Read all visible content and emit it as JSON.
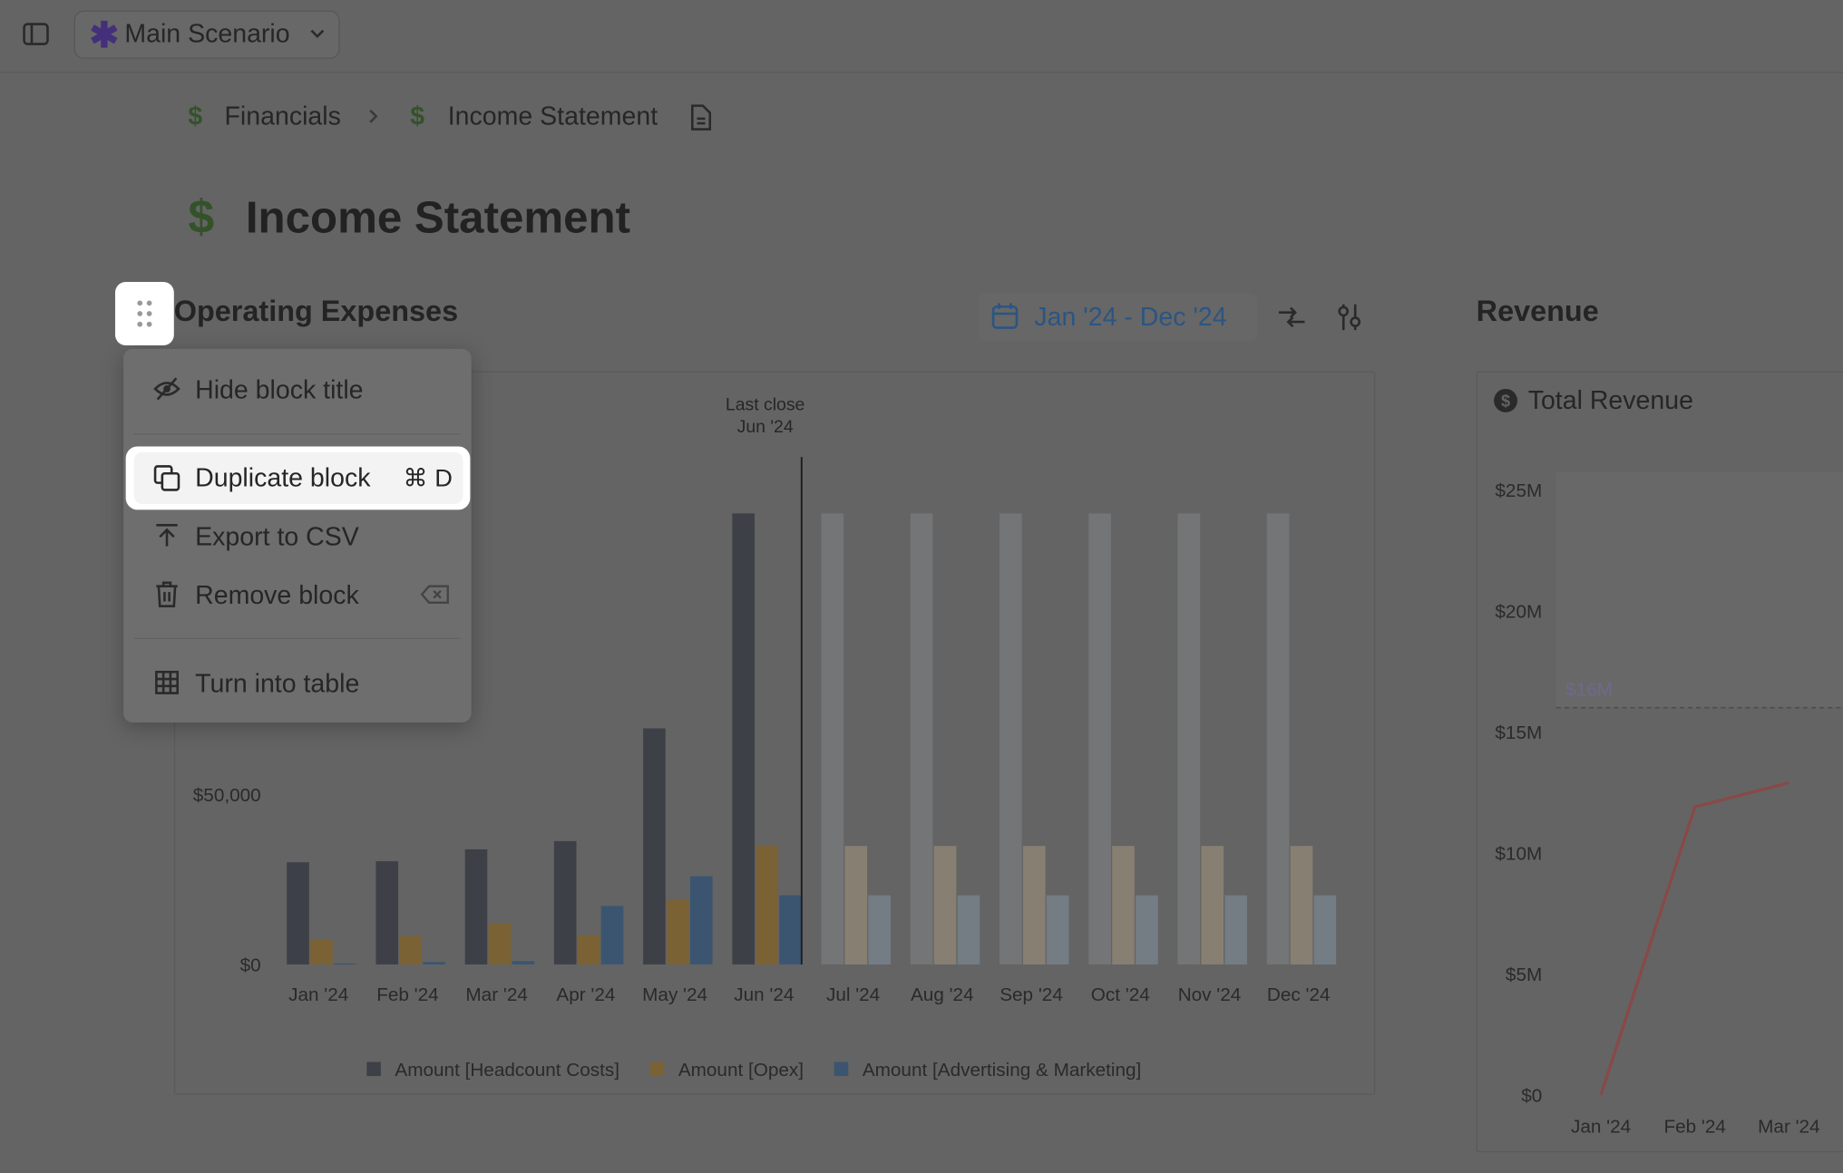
{
  "topbar": {
    "scenario": "Main Scenario"
  },
  "breadcrumb": [
    "Financials",
    "Income Statement"
  ],
  "page_title": "Income Statement",
  "block_toolbar": {
    "date_range": "Jan '24 - Dec '24"
  },
  "menu": {
    "items": [
      "Hide block title",
      "Duplicate block",
      "Export to CSV",
      "Remove block",
      "Turn into table"
    ],
    "shortcut": "⌘ D"
  },
  "chart_data": [
    {
      "type": "bar",
      "title": "Operating Expenses",
      "categories": [
        "Jan '24",
        "Feb '24",
        "Mar '24",
        "Apr '24",
        "May '24",
        "Jun '24",
        "Jul '24",
        "Aug '24",
        "Sep '24",
        "Oct '24",
        "Nov '24",
        "Dec '24"
      ],
      "series": [
        {
          "name": "Amount [Headcount Costs]",
          "color": "#3d4047",
          "values": [
            30000,
            30300,
            33800,
            36200,
            69300,
            132400,
            132400,
            132400,
            132400,
            132400,
            132400,
            132400
          ]
        },
        {
          "name": "Amount [Opex]",
          "color": "#7a6235",
          "values": [
            7200,
            8300,
            12000,
            8600,
            19000,
            34800,
            34800,
            34800,
            34800,
            34800,
            34800,
            34800
          ]
        },
        {
          "name": "Amount [Advertising & Marketing]",
          "color": "#3b5570",
          "values": [
            300,
            700,
            1000,
            17200,
            25900,
            20300,
            20300,
            20300,
            20300,
            20300,
            20300,
            20300
          ]
        }
      ],
      "ylim": [
        0,
        150000
      ],
      "yticks": [
        {
          "value": 0,
          "label": "$0"
        },
        {
          "value": 50000,
          "label": "$50,000"
        }
      ],
      "annotation": {
        "label": "Last close",
        "date": "Jun '24"
      },
      "legend": "bottom"
    },
    {
      "type": "line",
      "title": "Revenue",
      "subtitle": "Total Revenue",
      "categories": [
        "Jan '24",
        "Feb '24",
        "Mar '24"
      ],
      "values": [
        0,
        11900000,
        12900000
      ],
      "color": "#8a4848",
      "ylim": [
        0,
        25000000
      ],
      "yticks": [
        {
          "value": 0,
          "label": "$0"
        },
        {
          "value": 5000000,
          "label": "$5M"
        },
        {
          "value": 10000000,
          "label": "$10M"
        },
        {
          "value": 15000000,
          "label": "$15M"
        },
        {
          "value": 20000000,
          "label": "$20M"
        },
        {
          "value": 25000000,
          "label": "$25M"
        }
      ],
      "reference_line": {
        "value": 16000000,
        "label": "$16M"
      }
    }
  ]
}
